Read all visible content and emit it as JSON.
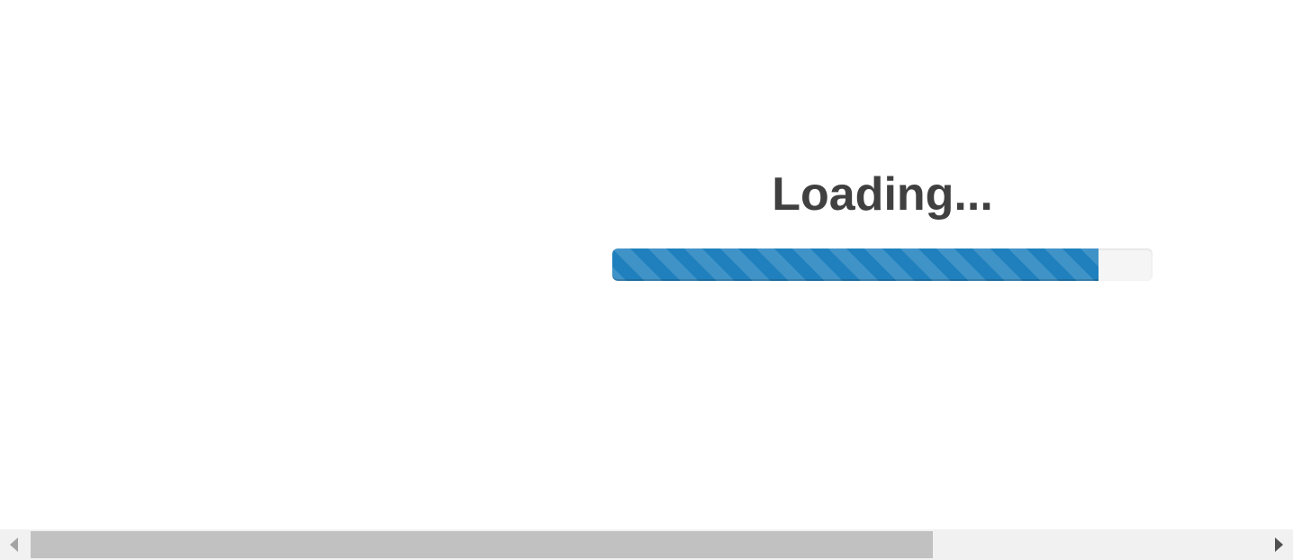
{
  "loading": {
    "title": "Loading...",
    "progress_fraction": 0.9,
    "bar_color": "#1f80bd"
  },
  "scrollbar": {
    "orientation": "horizontal",
    "left_arrow_icon": "arrow-left-icon",
    "right_arrow_icon": "arrow-right-icon"
  }
}
